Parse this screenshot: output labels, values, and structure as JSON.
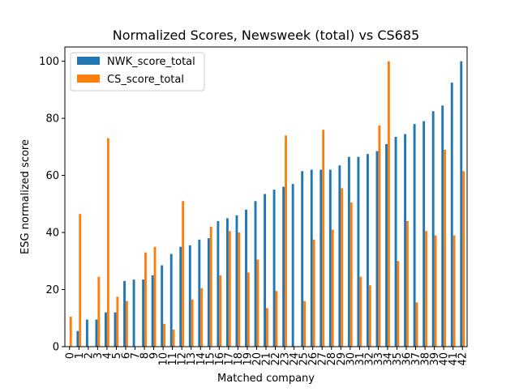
{
  "chart_data": {
    "type": "bar",
    "title": "Normalized Scores, Newsweek (total) vs CS685",
    "xlabel": "Matched company",
    "ylabel": "ESG normalized score",
    "ylim": [
      0,
      105
    ],
    "yticks": [
      0,
      20,
      40,
      60,
      80,
      100
    ],
    "grid": false,
    "legend_position": "top-left",
    "categories": [
      "0",
      "1",
      "2",
      "3",
      "4",
      "5",
      "6",
      "7",
      "8",
      "9",
      "10",
      "11",
      "12",
      "13",
      "14",
      "15",
      "16",
      "17",
      "18",
      "19",
      "20",
      "21",
      "22",
      "23",
      "24",
      "25",
      "26",
      "27",
      "28",
      "29",
      "30",
      "31",
      "32",
      "33",
      "34",
      "35",
      "36",
      "37",
      "38",
      "39",
      "40",
      "41",
      "42"
    ],
    "series": [
      {
        "name": "NWK_score_total",
        "color": "#1f77b4",
        "values": [
          0,
          5.5,
          9.5,
          9.5,
          12,
          12,
          23,
          23.5,
          23.5,
          25,
          28.5,
          32.5,
          35,
          35.5,
          37.5,
          38,
          44,
          45,
          46,
          48,
          51,
          53.5,
          55,
          56,
          57,
          61.5,
          62,
          62,
          62,
          63.5,
          66.5,
          66.5,
          67.5,
          68.5,
          71,
          73.5,
          74.5,
          78,
          79,
          82.5,
          84.5,
          92.5,
          100
        ]
      },
      {
        "name": "CS_score_total",
        "color": "#ff7f0e",
        "values": [
          10.5,
          46.5,
          0,
          24.5,
          73,
          17.5,
          16,
          0,
          33,
          35,
          8,
          6,
          51,
          16.5,
          20.5,
          42,
          25,
          40.5,
          40,
          26,
          30.5,
          13.5,
          19.5,
          74,
          0,
          16,
          37.5,
          76,
          41,
          55.5,
          50.5,
          24.5,
          21.5,
          77.5,
          100,
          30,
          44,
          15.5,
          40.5,
          39,
          69,
          39,
          61.5
        ]
      }
    ]
  }
}
